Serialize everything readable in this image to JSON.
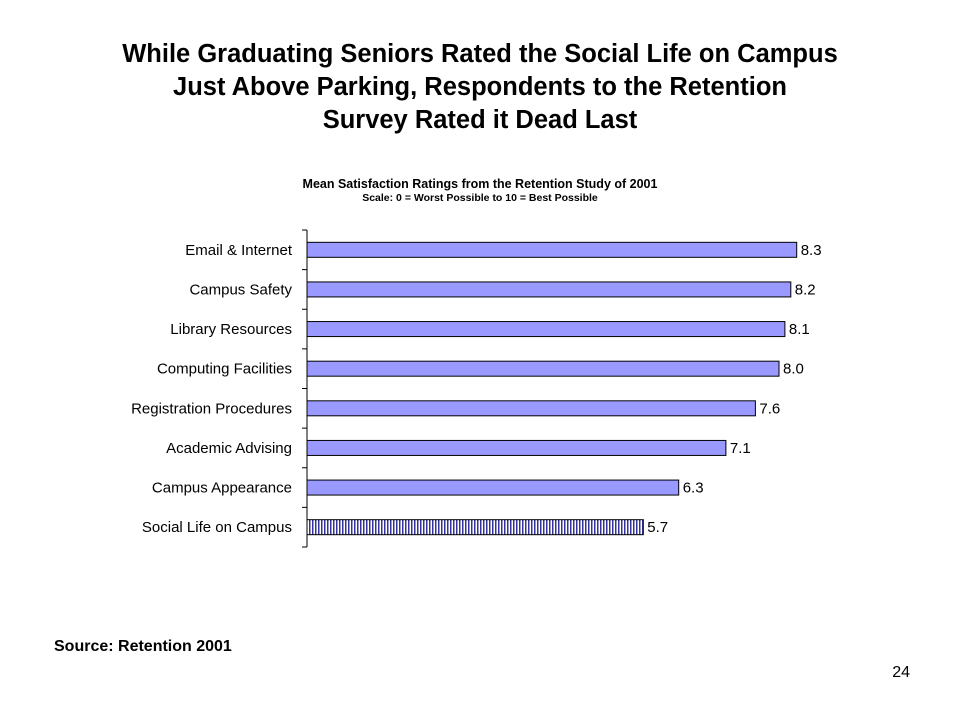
{
  "slide": {
    "title_lines": [
      "While Graduating Seniors Rated the Social Life on Campus",
      "Just Above Parking, Respondents to the Retention",
      "Survey Rated it Dead Last"
    ],
    "source": "Source: Retention 2001",
    "page_number": "24"
  },
  "chart_data": {
    "type": "bar",
    "orientation": "horizontal",
    "title": "Mean Satisfaction Ratings from the Retention Study of 2001",
    "subtitle": "Scale: 0 = Worst Possible to 10 = Best Possible",
    "categories": [
      "Email & Internet",
      "Campus Safety",
      "Library Resources",
      "Computing Facilities",
      "Registration Procedures",
      "Academic Advising",
      "Campus Appearance",
      "Social Life on Campus"
    ],
    "values": [
      8.3,
      8.2,
      8.1,
      8.0,
      7.6,
      7.1,
      6.3,
      5.7
    ],
    "data_labels": [
      "8.3",
      "8.2",
      "8.1",
      "8.0",
      "7.6",
      "7.1",
      "6.3",
      "5.7"
    ],
    "highlighted_category": "Social Life on Campus",
    "xlim": [
      0,
      10
    ],
    "xlabel": "",
    "ylabel": "",
    "grid": false,
    "legend": "none",
    "colors": {
      "bar_fill": "#9999ff",
      "bar_stroke": "#000000",
      "highlight_pattern": "vertical-stripes",
      "highlight_stripe": "#333399",
      "highlight_background": "#ffffff"
    }
  }
}
